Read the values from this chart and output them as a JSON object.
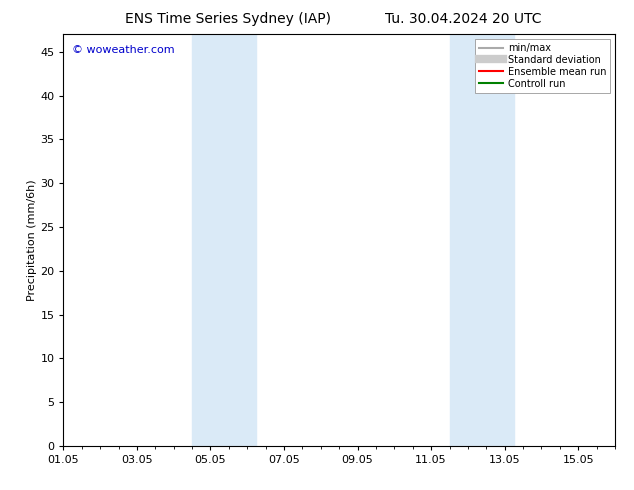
{
  "title_left": "ENS Time Series Sydney (IAP)",
  "title_right": "Tu. 30.04.2024 20 UTC",
  "ylabel": "Precipitation (mm/6h)",
  "ylim": [
    0,
    47
  ],
  "yticks": [
    0,
    5,
    10,
    15,
    20,
    25,
    30,
    35,
    40,
    45
  ],
  "total_days": 15,
  "xtick_labels": [
    "01.05",
    "03.05",
    "05.05",
    "07.05",
    "09.05",
    "11.05",
    "13.05",
    "15.05"
  ],
  "xtick_positions_days": [
    0,
    2,
    4,
    6,
    8,
    10,
    12,
    14
  ],
  "shaded_regions": [
    {
      "x_start_day": 3.5,
      "x_end_day": 5.25
    },
    {
      "x_start_day": 10.5,
      "x_end_day": 12.25
    }
  ],
  "shade_color": "#daeaf7",
  "watermark_text": "© woweather.com",
  "watermark_color": "#0000cc",
  "legend_items": [
    {
      "label": "min/max",
      "color": "#aaaaaa",
      "lw": 1.5,
      "style": "solid"
    },
    {
      "label": "Standard deviation",
      "color": "#cccccc",
      "lw": 6,
      "style": "solid"
    },
    {
      "label": "Ensemble mean run",
      "color": "#ff0000",
      "lw": 1.5,
      "style": "solid"
    },
    {
      "label": "Controll run",
      "color": "#008000",
      "lw": 1.5,
      "style": "solid"
    }
  ],
  "bg_color": "#ffffff",
  "title_fontsize": 10,
  "label_fontsize": 8,
  "tick_fontsize": 8,
  "watermark_fontsize": 8,
  "legend_fontsize": 7
}
